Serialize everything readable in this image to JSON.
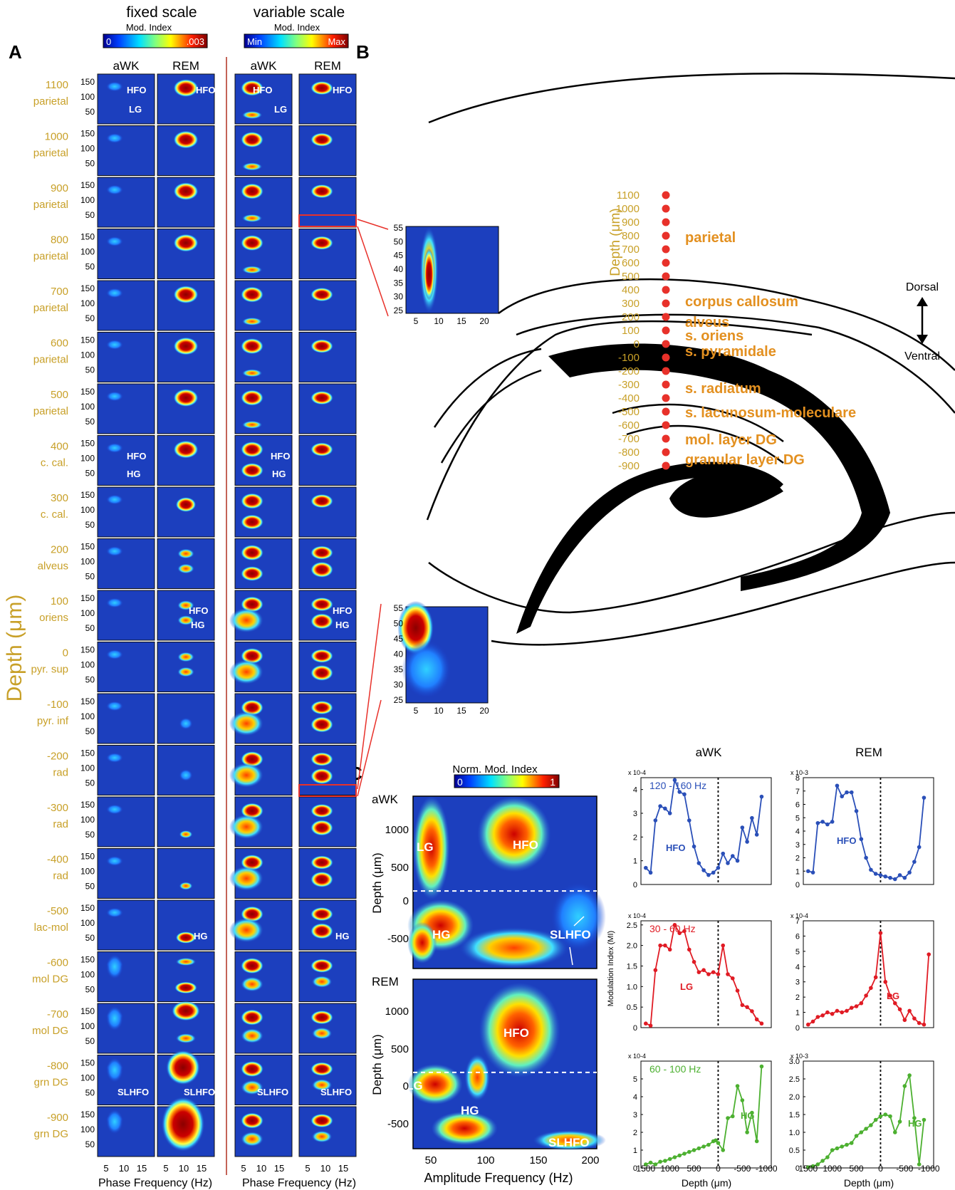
{
  "panel_letters": {
    "a": "A",
    "b": "B",
    "c": "C"
  },
  "panel_a": {
    "fixed_title": "fixed scale",
    "variable_title": "variable scale",
    "cbar_label": "Mod. Index",
    "fixed_cbar_min": "0",
    "fixed_cbar_max": ".003",
    "var_cbar_min": "Min",
    "var_cbar_max": "Max",
    "col_headers": [
      "aWK",
      "REM",
      "aWK",
      "REM"
    ],
    "y_axis_label": "Depth (μm)",
    "x_axis_label": "Phase Frequency (Hz)",
    "y_ticks": [
      "150",
      "100",
      "50"
    ],
    "x_ticks": [
      "5",
      "10",
      "15"
    ],
    "rows": [
      {
        "depth": "1100",
        "region": "parietal"
      },
      {
        "depth": "1000",
        "region": "parietal"
      },
      {
        "depth": "900",
        "region": "parietal"
      },
      {
        "depth": "800",
        "region": "parietal"
      },
      {
        "depth": "700",
        "region": "parietal"
      },
      {
        "depth": "600",
        "region": "parietal"
      },
      {
        "depth": "500",
        "region": "parietal"
      },
      {
        "depth": "400",
        "region": "c. cal."
      },
      {
        "depth": "300",
        "region": "c. cal."
      },
      {
        "depth": "200",
        "region": "alveus"
      },
      {
        "depth": "100",
        "region": "oriens"
      },
      {
        "depth": "0",
        "region": "pyr. sup"
      },
      {
        "depth": "-100",
        "region": "pyr. inf"
      },
      {
        "depth": "-200",
        "region": "rad"
      },
      {
        "depth": "-300",
        "region": "rad"
      },
      {
        "depth": "-400",
        "region": "rad"
      },
      {
        "depth": "-500",
        "region": "lac-mol"
      },
      {
        "depth": "-600",
        "region": "mol DG"
      },
      {
        "depth": "-700",
        "region": "mol DG"
      },
      {
        "depth": "-800",
        "region": "grn DG"
      },
      {
        "depth": "-900",
        "region": "grn DG"
      }
    ],
    "cell_labels": {
      "hfo": "HFO",
      "lg": "LG",
      "hg": "HG",
      "slhfo": "SLHFO"
    },
    "inset_top": {
      "y_ticks": [
        "55",
        "50",
        "45",
        "40",
        "35",
        "30",
        "25"
      ],
      "x_ticks": [
        "5",
        "10",
        "15",
        "20"
      ]
    },
    "inset_bottom": {
      "y_ticks": [
        "55",
        "50",
        "45",
        "40",
        "35",
        "30",
        "25"
      ],
      "x_ticks": [
        "5",
        "10",
        "15",
        "20"
      ]
    }
  },
  "panel_b": {
    "depth_label": "Depth (μm)",
    "depths": [
      "1100",
      "1000",
      "900",
      "800",
      "700",
      "600",
      "500",
      "400",
      "300",
      "200",
      "100",
      "0",
      "-100",
      "-200",
      "-300",
      "-400",
      "-500",
      "-600",
      "-700",
      "-800",
      "-900"
    ],
    "layers": [
      "parietal",
      "corpus callosum",
      "alveus",
      "s. oriens",
      "s. pyramidale",
      "s. radiatum",
      "s. lacunosum-moleculare",
      "mol. layer DG",
      "granular layer DG"
    ],
    "dorsal": "Dorsal",
    "ventral": "Ventral"
  },
  "panel_c": {
    "cbar_label": "Norm. Mod. Index",
    "cbar_min": "0",
    "cbar_max": "1",
    "heatmap_awk_label": "aWK",
    "heatmap_rem_label": "REM",
    "y_label": "Depth (μm)",
    "x_label": "Amplitude Frequency (Hz)",
    "y_ticks": [
      "1000",
      "500",
      "0",
      "-500"
    ],
    "x_ticks": [
      "50",
      "100",
      "150",
      "200"
    ],
    "awk_labels": {
      "lg": "LG",
      "hfo": "HFO",
      "hg": "HG",
      "slhfo": "SLHFO"
    },
    "rem_labels": {
      "lg": "LG",
      "hfo": "HFO",
      "hg": "HG",
      "slhfo": "SLHFO"
    },
    "col_awk": "aWK",
    "col_rem": "REM",
    "ylabel_mid": "Modulation Index (MI)",
    "depth_xlabel": "Depth (μm)",
    "depth_xticks": [
      "1500",
      "1000",
      "500",
      "0",
      "-500",
      "-1000"
    ]
  },
  "chart_data": [
    {
      "type": "line",
      "title": "120 - 160 Hz",
      "series": [
        {
          "name": "HFO",
          "values": [
            0.7,
            0.5,
            2.7,
            3.3,
            3.2,
            3.0,
            4.4,
            3.9,
            3.8,
            2.7,
            1.6,
            0.9,
            0.6,
            0.4,
            0.5,
            0.7,
            1.3,
            0.9,
            1.2,
            1.0,
            2.4,
            1.8,
            2.8,
            2.1,
            3.7
          ]
        }
      ],
      "x": [
        1500,
        1400,
        1300,
        1200,
        1100,
        1000,
        900,
        800,
        700,
        600,
        500,
        400,
        300,
        200,
        100,
        0,
        -100,
        -200,
        -300,
        -400,
        -500,
        -600,
        -700,
        -800,
        -900
      ],
      "xlabel": "Depth (μm)",
      "ylabel": "",
      "exponent": "x 10-4",
      "ylim": [
        0,
        4.5
      ],
      "yticks": [
        "0",
        "1",
        "2",
        "3",
        "4"
      ],
      "color": "#2a4fb8",
      "state": "aWK"
    },
    {
      "type": "line",
      "title": "",
      "series": [
        {
          "name": "HFO",
          "values": [
            1.0,
            0.9,
            4.6,
            4.7,
            4.5,
            4.7,
            7.4,
            6.6,
            6.9,
            6.9,
            5.5,
            3.4,
            2.0,
            1.1,
            0.8,
            0.7,
            0.6,
            0.5,
            0.4,
            0.7,
            0.5,
            0.9,
            1.7,
            2.8,
            6.5
          ]
        }
      ],
      "x": [
        1500,
        1400,
        1300,
        1200,
        1100,
        1000,
        900,
        800,
        700,
        600,
        500,
        400,
        300,
        200,
        100,
        0,
        -100,
        -200,
        -300,
        -400,
        -500,
        -600,
        -700,
        -800,
        -900
      ],
      "xlabel": "Depth (μm)",
      "ylabel": "",
      "exponent": "x 10-3",
      "ylim": [
        0,
        8
      ],
      "yticks": [
        "0",
        "1",
        "2",
        "3",
        "4",
        "5",
        "6",
        "7",
        "8"
      ],
      "color": "#2a4fb8",
      "state": "REM"
    },
    {
      "type": "line",
      "title": "30 - 60 Hz",
      "series": [
        {
          "name": "LG",
          "values": [
            0.1,
            0.05,
            1.4,
            2.0,
            2.0,
            1.9,
            2.5,
            2.3,
            2.35,
            1.9,
            1.6,
            1.35,
            1.4,
            1.3,
            1.35,
            1.3,
            2.0,
            1.3,
            1.2,
            0.9,
            0.55,
            0.5,
            0.4,
            0.2,
            0.1
          ]
        }
      ],
      "x": [
        1500,
        1400,
        1300,
        1200,
        1100,
        1000,
        900,
        800,
        700,
        600,
        500,
        400,
        300,
        200,
        100,
        0,
        -100,
        -200,
        -300,
        -400,
        -500,
        -600,
        -700,
        -800,
        -900
      ],
      "xlabel": "Depth (μm)",
      "ylabel": "Modulation Index (MI)",
      "exponent": "x 10-4",
      "ylim": [
        0,
        2.6
      ],
      "yticks": [
        "0",
        "0.5",
        "1.0",
        "1.5",
        "2.0",
        "2.5"
      ],
      "color": "#e01b24",
      "state": "aWK"
    },
    {
      "type": "line",
      "title": "",
      "series": [
        {
          "name": "LG",
          "values": [
            0.2,
            0.4,
            0.7,
            0.8,
            1.0,
            0.9,
            1.1,
            1.0,
            1.1,
            1.3,
            1.4,
            1.6,
            2.1,
            2.6,
            3.3,
            6.2,
            3.0,
            2.1,
            1.6,
            1.2,
            0.5,
            1.1,
            0.6,
            0.3,
            0.2,
            4.8
          ]
        }
      ],
      "x": [
        1500,
        1400,
        1300,
        1200,
        1100,
        1000,
        900,
        800,
        700,
        600,
        500,
        400,
        300,
        200,
        100,
        0,
        -100,
        -200,
        -300,
        -400,
        -500,
        -600,
        -700,
        -800,
        -900,
        -1000
      ],
      "xlabel": "Depth (μm)",
      "ylabel": "",
      "exponent": "x 10-4",
      "ylim": [
        0,
        7
      ],
      "yticks": [
        "0",
        "1",
        "2",
        "3",
        "4",
        "5",
        "6",
        "7"
      ],
      "color": "#e01b24",
      "state": "REM"
    },
    {
      "type": "line",
      "title": "60 - 100 Hz",
      "series": [
        {
          "name": "HG",
          "values": [
            0.2,
            0.3,
            0.2,
            0.35,
            0.4,
            0.5,
            0.6,
            0.7,
            0.8,
            0.9,
            1.0,
            1.1,
            1.2,
            1.3,
            1.5,
            1.55,
            1.4,
            1.0,
            2.8,
            2.9,
            4.6,
            3.8,
            2.0,
            3.1,
            1.5,
            5.7
          ]
        }
      ],
      "x": [
        1500,
        1400,
        1300,
        1200,
        1100,
        1000,
        900,
        800,
        700,
        600,
        500,
        400,
        300,
        200,
        100,
        50,
        0,
        -100,
        -200,
        -300,
        -400,
        -500,
        -600,
        -700,
        -800,
        -900
      ],
      "xlabel": "Depth (μm)",
      "ylabel": "",
      "exponent": "x 10-4",
      "ylim": [
        0,
        6
      ],
      "yticks": [
        "0",
        "1",
        "2",
        "3",
        "4",
        "5"
      ],
      "color": "#4cb030",
      "state": "aWK"
    },
    {
      "type": "line",
      "title": "",
      "series": [
        {
          "name": "HG",
          "values": [
            0.02,
            0.05,
            0.1,
            0.2,
            0.3,
            0.5,
            0.55,
            0.6,
            0.65,
            0.7,
            0.9,
            1.0,
            1.1,
            1.2,
            1.35,
            1.45,
            1.5,
            1.45,
            1.0,
            1.3,
            2.3,
            2.6,
            1.4,
            0.1,
            1.35
          ]
        }
      ],
      "x": [
        1500,
        1400,
        1300,
        1200,
        1100,
        1000,
        900,
        800,
        700,
        600,
        500,
        400,
        300,
        200,
        100,
        0,
        -100,
        -200,
        -300,
        -400,
        -500,
        -600,
        -700,
        -800,
        -900
      ],
      "xlabel": "Depth (μm)",
      "ylabel": "",
      "exponent": "x 10-3",
      "ylim": [
        0,
        3.0
      ],
      "yticks": [
        "0",
        "0.5",
        "1.0",
        "1.5",
        "2.0",
        "2.5",
        "3.0"
      ],
      "color": "#4cb030",
      "state": "REM"
    }
  ],
  "colors": {
    "gold": "#c8a028",
    "orange": "#e39020",
    "red": "#e8312a",
    "dark_blue": "#1a237e"
  }
}
